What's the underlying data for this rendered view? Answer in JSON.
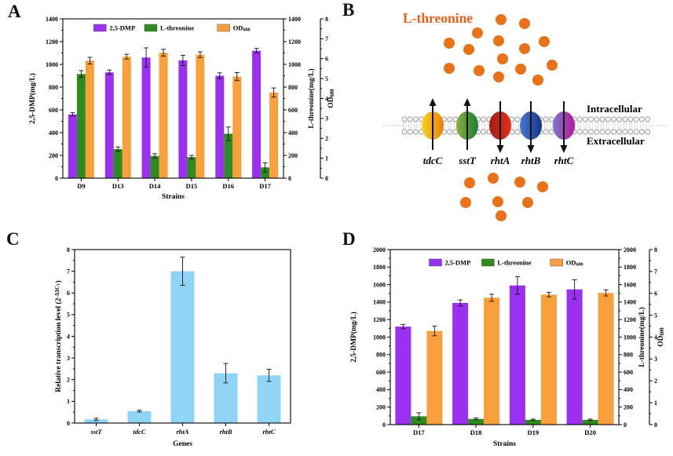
{
  "panels": {
    "a": {
      "label": "A"
    },
    "b": {
      "label": "B",
      "title": "L-threonine",
      "title_color": "#E8611A",
      "dot_color": "#E97118",
      "membrane_labels": {
        "inner": "Intracellular",
        "outer": "Extracellular"
      },
      "transporters": [
        {
          "name": "tdcC",
          "direction": "up",
          "color_start": "#F7D41F",
          "color_end": "#E87F07"
        },
        {
          "name": "sstT",
          "direction": "up",
          "color_start": "#8AAF3E",
          "color_end": "#1B7C33"
        },
        {
          "name": "rhtA",
          "direction": "down",
          "color_start": "#9E1F12",
          "color_end": "#E3311C"
        },
        {
          "name": "rhtB",
          "direction": "down",
          "color_start": "#4A79CF",
          "color_end": "#15358D"
        },
        {
          "name": "rhtC",
          "direction": "down",
          "color_start": "#7B79CB",
          "color_end": "#B31895"
        }
      ],
      "dots_above": [
        [
          208,
          25
        ],
        [
          238,
          30
        ],
        [
          178,
          42
        ],
        [
          142,
          55
        ],
        [
          205,
          52
        ],
        [
          167,
          63
        ],
        [
          238,
          62
        ],
        [
          263,
          53
        ],
        [
          210,
          75
        ],
        [
          142,
          87
        ],
        [
          180,
          90
        ],
        [
          205,
          98
        ],
        [
          233,
          88
        ],
        [
          255,
          102
        ],
        [
          273,
          83
        ]
      ],
      "dots_below": [
        [
          168,
          233
        ],
        [
          198,
          227
        ],
        [
          232,
          232
        ],
        [
          261,
          238
        ],
        [
          163,
          258
        ],
        [
          204,
          257
        ],
        [
          242,
          258
        ],
        [
          208,
          275
        ]
      ]
    },
    "c": {
      "label": "C"
    },
    "d": {
      "label": "D"
    }
  },
  "chart_data": [
    {
      "id": "A",
      "type": "bar",
      "categories": [
        "D9",
        "D13",
        "D14",
        "D15",
        "D16",
        "D17"
      ],
      "xlabel": "Strains",
      "grid": false,
      "legend_position": "top-inside",
      "axes": {
        "left": {
          "label_parts": [
            {
              "t": "2,5-DMP(mg/L)"
            }
          ],
          "min": 0,
          "max": 1400,
          "major": 200,
          "minor": 100
        },
        "right": {
          "label_parts": [
            {
              "t": "L-threonine(mg/L)"
            }
          ],
          "min": 0,
          "max": 1400,
          "major": 200,
          "minor": 100
        },
        "od": {
          "label_parts": [
            {
              "t": "OD"
            },
            {
              "t": "600",
              "style": "sub"
            }
          ],
          "min": 0,
          "max": 8,
          "major": 1,
          "minor": 0.5
        }
      },
      "series": [
        {
          "name_parts": [
            {
              "t": "2,5-DMP"
            }
          ],
          "color": "#9B30F0",
          "axis": "left",
          "values": [
            560,
            930,
            1060,
            1035,
            900,
            1120
          ],
          "errors": [
            15,
            20,
            85,
            45,
            25,
            20
          ]
        },
        {
          "name_parts": [
            {
              "t": "L-threonine"
            }
          ],
          "color": "#2E8B1E",
          "axis": "right",
          "values": [
            915,
            255,
            195,
            185,
            390,
            95
          ],
          "errors": [
            30,
            20,
            20,
            15,
            60,
            40
          ]
        },
        {
          "name_parts": [
            {
              "t": "OD"
            },
            {
              "t": "600",
              "style": "sub"
            }
          ],
          "color": "#F9A03C",
          "axis": "od",
          "values": [
            5.9,
            6.1,
            6.3,
            6.2,
            5.1,
            4.3
          ],
          "errors": [
            0.17,
            0.12,
            0.17,
            0.14,
            0.2,
            0.23
          ]
        }
      ]
    },
    {
      "id": "C",
      "type": "bar",
      "categories": [
        "sstT",
        "tdcC",
        "rhtA",
        "rhtB",
        "rhtC"
      ],
      "categories_italic": true,
      "xlabel": "Genes",
      "grid": false,
      "axes": {
        "left": {
          "label_parts": [
            {
              "t": "Relative transcription level (2"
            },
            {
              "t": "-ΔΔC",
              "style": "sup"
            },
            {
              "t": "T",
              "style": "supsub"
            },
            {
              "t": ")"
            }
          ],
          "min": 0,
          "max": 8,
          "major": 1,
          "minor": 0.5
        }
      },
      "series": [
        {
          "name_parts": [
            {
              "t": "Relative transcription level"
            }
          ],
          "color": "#8FD4F4",
          "axis": "left",
          "values": [
            0.17,
            0.55,
            7.0,
            2.3,
            2.2
          ],
          "errors": [
            0.05,
            0.04,
            0.65,
            0.45,
            0.28
          ]
        }
      ]
    },
    {
      "id": "D",
      "type": "bar",
      "categories": [
        "D17",
        "D18",
        "D19",
        "D20"
      ],
      "xlabel": "Strains",
      "grid": false,
      "legend_position": "top-inside",
      "axes": {
        "left": {
          "label_parts": [
            {
              "t": "2,5-DMP(mg/L)"
            }
          ],
          "min": 0,
          "max": 2000,
          "major": 200,
          "minor": 100
        },
        "right": {
          "label_parts": [
            {
              "t": "L-threonine(mg/L)"
            }
          ],
          "min": 0,
          "max": 2000,
          "major": 200,
          "minor": 100
        },
        "od": {
          "label_parts": [
            {
              "t": "OD"
            },
            {
              "t": "600",
              "style": "sub"
            }
          ],
          "min": 0,
          "max": 8,
          "major": 1,
          "minor": 0.5
        }
      },
      "series": [
        {
          "name_parts": [
            {
              "t": "2,5-DMP"
            }
          ],
          "color": "#9B30F0",
          "axis": "left",
          "values": [
            1120,
            1390,
            1590,
            1545
          ],
          "errors": [
            25,
            35,
            100,
            110
          ]
        },
        {
          "name_parts": [
            {
              "t": "L-threonine"
            }
          ],
          "color": "#2E8B1E",
          "axis": "right",
          "values": [
            95,
            65,
            55,
            55
          ],
          "errors": [
            40,
            10,
            8,
            8
          ]
        },
        {
          "name_parts": [
            {
              "t": "OD"
            },
            {
              "t": "600",
              "style": "sub"
            }
          ],
          "color": "#F9A03C",
          "axis": "od",
          "values": [
            4.28,
            5.8,
            5.94,
            6.02
          ],
          "errors": [
            0.22,
            0.16,
            0.1,
            0.14
          ]
        }
      ]
    }
  ]
}
